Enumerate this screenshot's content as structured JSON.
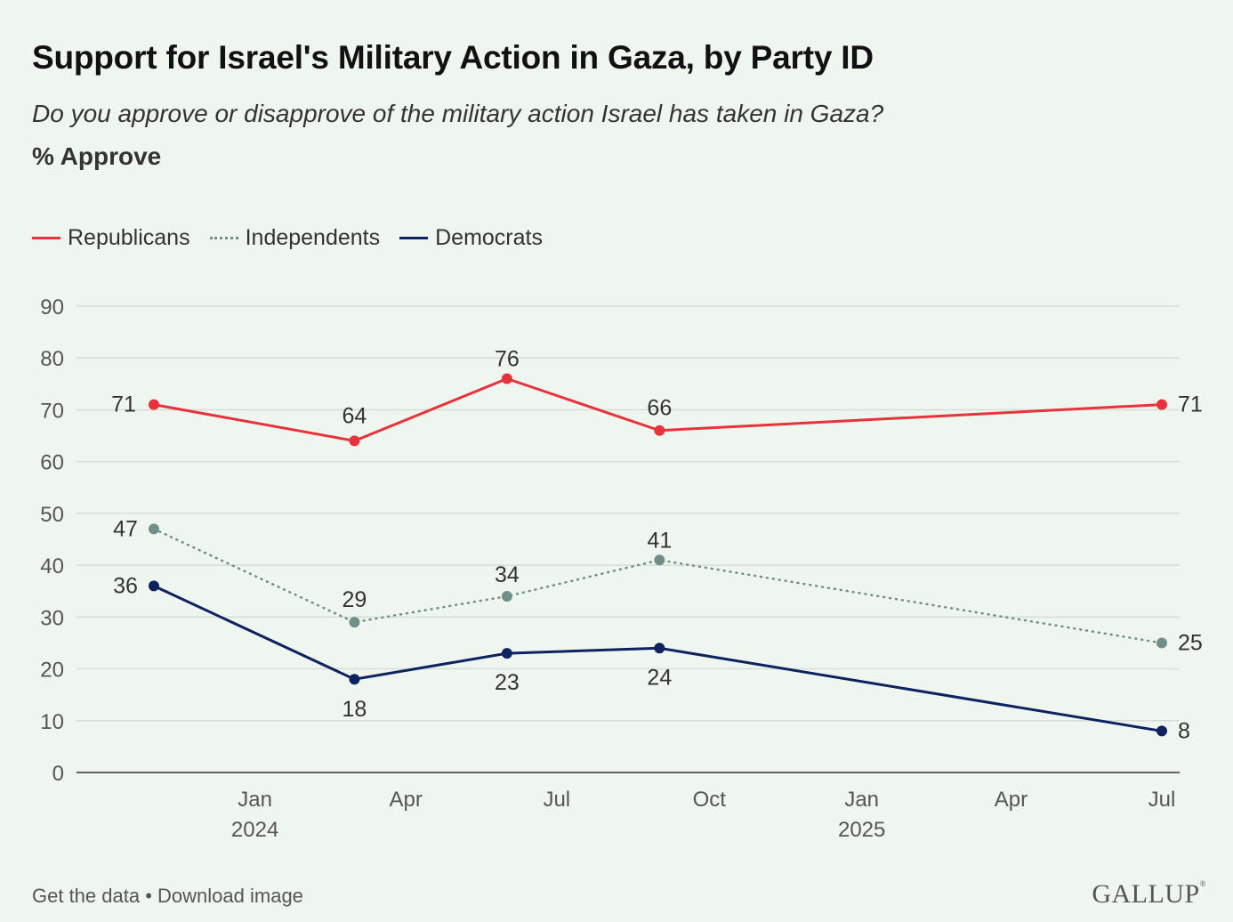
{
  "title": "Support for Israel's Military Action in Gaza, by Party ID",
  "subtitle": "Do you approve or disapprove of the military action Israel has taken in Gaza?",
  "measure": "% Approve",
  "footer": {
    "get_data": "Get the data",
    "separator": "•",
    "download": "Download image"
  },
  "brand": "GALLUP",
  "brand_mark": "®",
  "chart_data": {
    "type": "line",
    "ylim": [
      0,
      90
    ],
    "yticks": [
      0,
      10,
      20,
      30,
      40,
      50,
      60,
      70,
      80,
      90
    ],
    "grid": true,
    "legend_position": "top-left",
    "x_ticks": [
      {
        "label": "Jan",
        "year": "2024",
        "date": "2024-01-01"
      },
      {
        "label": "Apr",
        "year": "",
        "date": "2024-04-01"
      },
      {
        "label": "Jul",
        "year": "",
        "date": "2024-07-01"
      },
      {
        "label": "Oct",
        "year": "",
        "date": "2024-10-01"
      },
      {
        "label": "Jan",
        "year": "2025",
        "date": "2025-01-01"
      },
      {
        "label": "Apr",
        "year": "",
        "date": "2025-04-01"
      },
      {
        "label": "Jul",
        "year": "",
        "date": "2025-07-01"
      }
    ],
    "x": [
      "2023-11-01",
      "2024-03-01",
      "2024-06-01",
      "2024-09-01",
      "2025-07-01"
    ],
    "series": [
      {
        "name": "Republicans",
        "color": "#e8323c",
        "style": "solid",
        "values": [
          71,
          64,
          76,
          66,
          71
        ]
      },
      {
        "name": "Independents",
        "color": "#6f8f88",
        "style": "dotted",
        "values": [
          47,
          29,
          34,
          41,
          25
        ]
      },
      {
        "name": "Democrats",
        "color": "#0f2260",
        "style": "solid",
        "values": [
          36,
          18,
          23,
          24,
          8
        ]
      }
    ]
  }
}
